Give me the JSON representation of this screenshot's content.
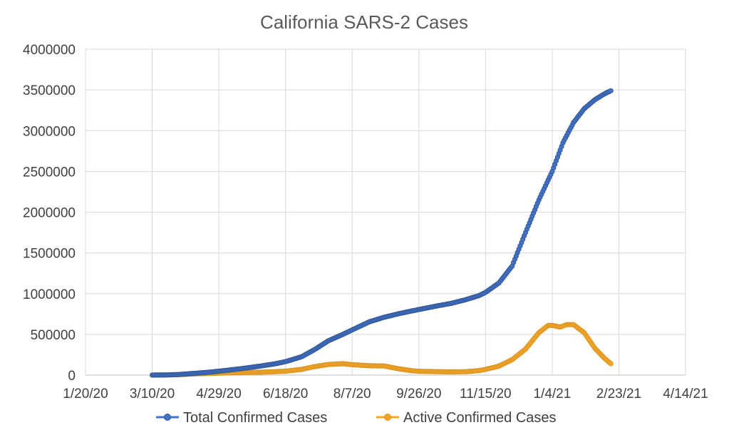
{
  "chart_data": {
    "type": "scatter",
    "title": "California SARS-2 Cases",
    "xlabel": "",
    "ylabel": "",
    "x_ticks": [
      "1/20/20",
      "3/10/20",
      "4/29/20",
      "6/18/20",
      "8/7/20",
      "9/26/20",
      "11/15/20",
      "1/4/21",
      "2/23/21",
      "4/14/21"
    ],
    "xlim": [
      "2020-01-20",
      "2021-04-14"
    ],
    "y_ticks": [
      "0",
      "500000",
      "1000000",
      "1500000",
      "2000000",
      "2500000",
      "3000000",
      "3500000",
      "4000000"
    ],
    "ylim": [
      0,
      4000000
    ],
    "grid": true,
    "legend_position": "bottom",
    "series": [
      {
        "name": "Total Confirmed Cases",
        "color": "#4472C4",
        "marker": "circle",
        "x": [
          "2020-03-10",
          "2020-03-20",
          "2020-03-30",
          "2020-04-10",
          "2020-04-20",
          "2020-04-29",
          "2020-05-10",
          "2020-05-20",
          "2020-05-31",
          "2020-06-10",
          "2020-06-18",
          "2020-06-30",
          "2020-07-10",
          "2020-07-20",
          "2020-07-31",
          "2020-08-07",
          "2020-08-20",
          "2020-08-31",
          "2020-09-10",
          "2020-09-20",
          "2020-09-26",
          "2020-10-10",
          "2020-10-20",
          "2020-10-31",
          "2020-11-10",
          "2020-11-15",
          "2020-11-25",
          "2020-12-05",
          "2020-12-15",
          "2020-12-25",
          "2021-01-04",
          "2021-01-12",
          "2021-01-20",
          "2021-01-28",
          "2021-02-05",
          "2021-02-12",
          "2021-02-17"
        ],
        "y": [
          300,
          1500,
          7000,
          21000,
          33000,
          48000,
          68000,
          88000,
          113000,
          138000,
          165000,
          225000,
          315000,
          420000,
          500000,
          555000,
          655000,
          710000,
          750000,
          785000,
          805000,
          850000,
          880000,
          925000,
          975000,
          1015000,
          1130000,
          1340000,
          1750000,
          2150000,
          2500000,
          2850000,
          3100000,
          3270000,
          3380000,
          3450000,
          3490000
        ]
      },
      {
        "name": "Active Confirmed Cases",
        "color": "#ED7D31",
        "marker": "circle",
        "x": [
          "2020-03-10",
          "2020-03-20",
          "2020-03-30",
          "2020-04-10",
          "2020-04-20",
          "2020-04-29",
          "2020-05-10",
          "2020-05-20",
          "2020-05-31",
          "2020-06-10",
          "2020-06-18",
          "2020-06-30",
          "2020-07-10",
          "2020-07-20",
          "2020-07-31",
          "2020-08-07",
          "2020-08-20",
          "2020-08-31",
          "2020-09-10",
          "2020-09-20",
          "2020-09-26",
          "2020-10-10",
          "2020-10-20",
          "2020-10-31",
          "2020-11-10",
          "2020-11-15",
          "2020-11-25",
          "2020-12-05",
          "2020-12-15",
          "2020-12-25",
          "2021-01-01",
          "2021-01-04",
          "2021-01-10",
          "2021-01-15",
          "2021-01-20",
          "2021-01-28",
          "2021-02-05",
          "2021-02-12",
          "2021-02-17"
        ],
        "y": [
          300,
          1500,
          6000,
          14000,
          20000,
          24000,
          28000,
          32000,
          36000,
          42000,
          48000,
          70000,
          105000,
          130000,
          140000,
          128000,
          115000,
          112000,
          80000,
          55000,
          47000,
          42000,
          40000,
          42000,
          55000,
          70000,
          110000,
          190000,
          320000,
          520000,
          610000,
          610000,
          590000,
          620000,
          620000,
          520000,
          330000,
          210000,
          140000
        ]
      }
    ]
  }
}
